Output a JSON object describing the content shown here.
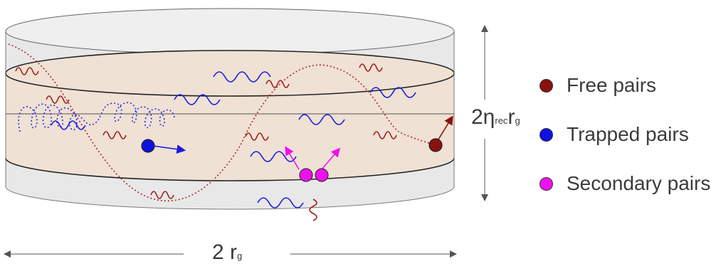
{
  "labels": {
    "height_main": "2η",
    "height_sub1": "rec",
    "height_main2": "r",
    "height_sub2": "g",
    "width_main": "2 r",
    "width_sub": "g"
  },
  "legend": [
    {
      "label": "Free pairs",
      "color": "#8b1010"
    },
    {
      "label": "Trapped pairs",
      "color": "#1010e0"
    },
    {
      "label": "Secondary pairs",
      "color": "#ee10ee"
    }
  ],
  "colors": {
    "cylinder_fill": "#e9e9e9",
    "band_fill": "#efe0d0",
    "free_wave": "#9b1a1a",
    "trapped_wave": "#1a1adf",
    "secondary": "#ee10ee"
  }
}
